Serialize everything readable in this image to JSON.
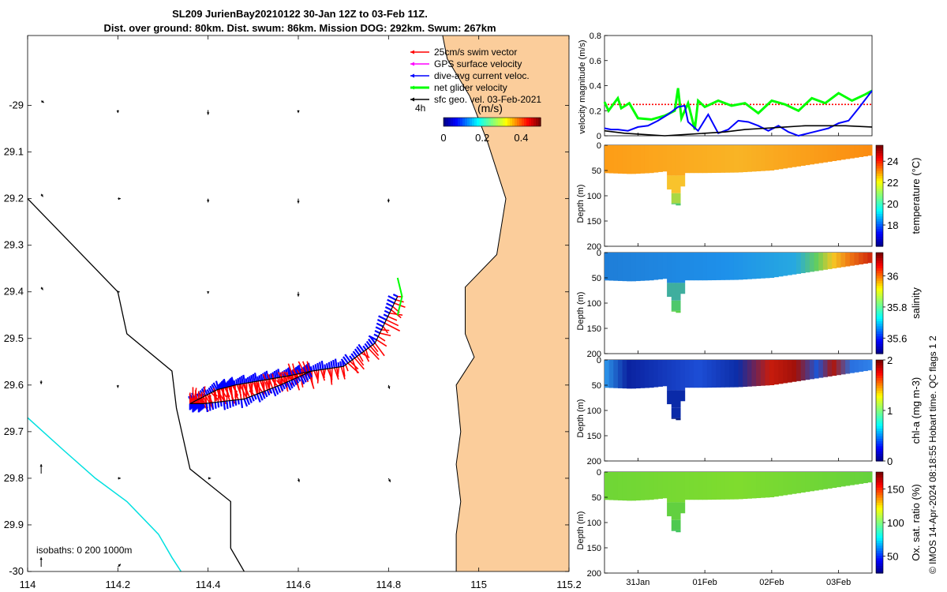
{
  "title": {
    "line1": "SL209 JurienBay20210122 30-Jan 12Z to 03-Feb 11Z.",
    "line2": "Dist. over ground: 80km. Dist. swum: 86km. Mission DOG: 292km. Swum: 267km"
  },
  "credit": "© IMOS 14-Apr-2024 08:18:55 Hobart time. QC flags 1  2",
  "colors": {
    "land": "#fbcd9b",
    "coast": "#000000",
    "isobath_200": "#000000",
    "isobath_1000": "#00e0e0",
    "swim": "#ff0000",
    "gps": "#ff00ff",
    "dive": "#0000ff",
    "net": "#00ff00",
    "sfc": "#000000"
  },
  "chart_data": [
    {
      "type": "map",
      "name": "glider-track-map",
      "xlim": [
        114,
        115.2
      ],
      "ylim": [
        -30,
        -28.85
      ],
      "xticks": [
        114,
        114.2,
        114.4,
        114.6,
        114.8,
        115,
        115.2
      ],
      "xtick_labels": [
        "114",
        "114.2",
        "114.4",
        "114.6",
        "114.8",
        "115",
        "115.2"
      ],
      "yticks": [
        -29,
        -29.1,
        -29.2,
        -29.3,
        -29.4,
        -29.5,
        -29.6,
        -29.7,
        -29.8,
        -29.9,
        -30
      ],
      "ytick_labels": [
        "-29",
        "29.1",
        "29.2",
        "29.3",
        "29.4",
        "29.5",
        "29.6",
        "29.7",
        "29.8",
        "29.9",
        "-30"
      ],
      "legend": [
        {
          "label": "25cm/s swim vector",
          "color": "#ff0000"
        },
        {
          "label": "GPS surface velocity",
          "color": "#ff00ff"
        },
        {
          "label": "dive-avg current veloc.",
          "color": "#0000ff"
        },
        {
          "label": "net glider velocity",
          "color": "#00ff00"
        },
        {
          "label": "sfc geo. vel. 03-Feb-2021",
          "color": "#000000"
        }
      ],
      "legend_note": "4h",
      "colorbar": {
        "label": "(m/s)",
        "ticks": [
          0,
          0.2,
          0.4
        ],
        "tick_labels": [
          "0",
          "0.2",
          "0.4"
        ],
        "range": [
          0,
          0.5
        ]
      },
      "isobath_label": "isobaths: 0   200  1000m",
      "coastline": [
        [
          115.2,
          -28.85
        ],
        [
          114.92,
          -28.85
        ],
        [
          114.93,
          -28.9
        ],
        [
          114.98,
          -28.98
        ],
        [
          115.02,
          -29.08
        ],
        [
          115.06,
          -29.2
        ],
        [
          115.04,
          -29.32
        ],
        [
          114.97,
          -29.39
        ],
        [
          114.97,
          -29.49
        ],
        [
          114.99,
          -29.54
        ],
        [
          114.95,
          -29.6
        ],
        [
          114.96,
          -29.7
        ],
        [
          114.95,
          -29.77
        ],
        [
          114.96,
          -29.85
        ],
        [
          114.95,
          -29.92
        ],
        [
          114.95,
          -30
        ],
        [
          115.2,
          -30
        ]
      ],
      "isobath_200": [
        [
          114,
          -29.2
        ],
        [
          114.1,
          -29.3
        ],
        [
          114.2,
          -29.4
        ],
        [
          114.22,
          -29.49
        ],
        [
          114.32,
          -29.57
        ],
        [
          114.33,
          -29.65
        ],
        [
          114.36,
          -29.78
        ],
        [
          114.45,
          -29.85
        ],
        [
          114.45,
          -29.95
        ],
        [
          114.48,
          -30
        ]
      ],
      "isobath_1000": [
        [
          114,
          -29.67
        ],
        [
          114.08,
          -29.74
        ],
        [
          114.15,
          -29.8
        ],
        [
          114.22,
          -29.85
        ],
        [
          114.29,
          -29.92
        ],
        [
          114.32,
          -29.97
        ],
        [
          114.34,
          -30
        ]
      ],
      "track": [
        [
          114.82,
          -29.41
        ],
        [
          114.77,
          -29.51
        ],
        [
          114.7,
          -29.56
        ],
        [
          114.63,
          -29.57
        ],
        [
          114.58,
          -29.58
        ],
        [
          114.52,
          -29.59
        ],
        [
          114.46,
          -29.6
        ],
        [
          114.42,
          -29.61
        ],
        [
          114.36,
          -29.64
        ],
        [
          114.39,
          -29.64
        ],
        [
          114.48,
          -29.63
        ],
        [
          114.56,
          -29.6
        ],
        [
          114.63,
          -29.57
        ]
      ],
      "current_arrows": [
        {
          "lon": 114.03,
          "lat": -28.99,
          "u": 0.03,
          "v": -0.02
        },
        {
          "lon": 114.2,
          "lat": -29.01,
          "u": 0,
          "v": -0.03
        },
        {
          "lon": 114.4,
          "lat": -29.01,
          "u": 0,
          "v": -0.05
        },
        {
          "lon": 114.6,
          "lat": -29.01,
          "u": 0,
          "v": -0.03
        },
        {
          "lon": 114.03,
          "lat": -29.19,
          "u": 0.02,
          "v": -0.03
        },
        {
          "lon": 114.2,
          "lat": -29.2,
          "u": 0.03,
          "v": 0
        },
        {
          "lon": 114.4,
          "lat": -29.2,
          "u": 0,
          "v": -0.04
        },
        {
          "lon": 114.6,
          "lat": -29.2,
          "u": 0,
          "v": -0.05
        },
        {
          "lon": 114.8,
          "lat": -29.2,
          "u": 0,
          "v": -0.04
        },
        {
          "lon": 114.03,
          "lat": -29.39,
          "u": 0.02,
          "v": -0.03
        },
        {
          "lon": 114.2,
          "lat": -29.4,
          "u": 0.02,
          "v": 0
        },
        {
          "lon": 114.4,
          "lat": -29.4,
          "u": 0,
          "v": -0.02
        },
        {
          "lon": 114.6,
          "lat": -29.4,
          "u": 0,
          "v": -0.05
        },
        {
          "lon": 114.03,
          "lat": -29.59,
          "u": 0,
          "v": -0.04
        },
        {
          "lon": 114.2,
          "lat": -29.6,
          "u": 0,
          "v": -0.03
        },
        {
          "lon": 114.8,
          "lat": -29.6,
          "u": 0.01,
          "v": -0.04
        },
        {
          "lon": 114.03,
          "lat": -29.79,
          "u": 0,
          "v": 0.1
        },
        {
          "lon": 114.2,
          "lat": -29.8,
          "u": 0.03,
          "v": 0
        },
        {
          "lon": 114.4,
          "lat": -29.8,
          "u": 0.03,
          "v": 0
        },
        {
          "lon": 114.6,
          "lat": -29.8,
          "u": 0.01,
          "v": -0.04
        },
        {
          "lon": 114.8,
          "lat": -29.8,
          "u": 0.02,
          "v": -0.04
        },
        {
          "lon": 114.03,
          "lat": -29.99,
          "u": 0,
          "v": 0.1
        },
        {
          "lon": 114.2,
          "lat": -29.99,
          "u": 0.03,
          "v": 0.03
        }
      ]
    },
    {
      "type": "line",
      "name": "velocity-magnitude-plot",
      "ylabel": "velocity magnitude (m/s)",
      "ylim": [
        0,
        0.8
      ],
      "yticks": [
        0,
        0.2,
        0.4,
        0.6,
        0.8
      ],
      "ytick_labels": [
        "0",
        "0.2",
        "0.4",
        "0.6",
        "0.8"
      ],
      "x_days": [
        30.5,
        34.5
      ],
      "series": [
        {
          "name": "swim speed",
          "color": "#ff0000",
          "x": [
            30.5,
            34.5
          ],
          "values": [
            0.25,
            0.25
          ]
        },
        {
          "name": "net glider velocity",
          "color": "#00ff00",
          "x": [
            30.5,
            30.56,
            30.7,
            30.75,
            30.87,
            31.0,
            31.2,
            31.4,
            31.55,
            31.6,
            31.65,
            31.75,
            31.85,
            31.9,
            32.0,
            32.2,
            32.4,
            32.6,
            32.8,
            33.0,
            33.2,
            33.4,
            33.6,
            33.8,
            34.0,
            34.2,
            34.4,
            34.5
          ],
          "values": [
            0.27,
            0.2,
            0.3,
            0.22,
            0.26,
            0.14,
            0.13,
            0.16,
            0.2,
            0.38,
            0.14,
            0.26,
            0.05,
            0.28,
            0.23,
            0.28,
            0.24,
            0.26,
            0.18,
            0.28,
            0.25,
            0.2,
            0.3,
            0.26,
            0.34,
            0.28,
            0.33,
            0.36
          ]
        },
        {
          "name": "dive-avg current veloc.",
          "color": "#0000ff",
          "x": [
            30.5,
            30.6,
            30.7,
            30.85,
            31.0,
            31.15,
            31.3,
            31.45,
            31.6,
            31.7,
            31.75,
            31.9,
            32.05,
            32.2,
            32.35,
            32.5,
            32.65,
            32.8,
            32.95,
            33.1,
            33.25,
            33.4,
            33.55,
            33.7,
            33.85,
            34.0,
            34.15,
            34.3,
            34.5
          ],
          "values": [
            0.06,
            0.05,
            0.05,
            0.04,
            0.07,
            0.08,
            0.12,
            0.17,
            0.23,
            0.24,
            0.11,
            0.04,
            0.17,
            0.02,
            0.05,
            0.12,
            0.11,
            0.08,
            0.04,
            0.08,
            0.03,
            0.0,
            0.02,
            0.04,
            0.06,
            0.1,
            0.12,
            0.22,
            0.36
          ]
        },
        {
          "name": "sfc geo. velocity",
          "color": "#000000",
          "x": [
            30.5,
            30.8,
            31.1,
            31.4,
            31.7,
            32.0,
            32.3,
            32.6,
            32.9,
            33.2,
            33.5,
            33.8,
            34.1,
            34.5
          ],
          "values": [
            0.04,
            0.02,
            0.01,
            0.0,
            0.01,
            0.02,
            0.03,
            0.05,
            0.06,
            0.07,
            0.08,
            0.08,
            0.08,
            0.07
          ]
        }
      ]
    },
    {
      "type": "heatmap",
      "name": "temperature-section",
      "ylabel": "Depth (m)",
      "ylim": [
        200,
        0
      ],
      "yticks": [
        0,
        50,
        100,
        150,
        200
      ],
      "ytick_labels": [
        "0",
        "50",
        "100",
        "150",
        "200"
      ],
      "colorbar_label": "temperature (°C)",
      "crange": [
        16,
        25.5
      ],
      "cticks": [
        18,
        20,
        22,
        24
      ],
      "ctick_labels": [
        "18",
        "20",
        "22",
        "24"
      ],
      "stops": [
        [
          0,
          "#fd9d17"
        ],
        [
          0.5,
          "#f9b425"
        ],
        [
          1,
          "#fb8c10"
        ]
      ],
      "canyon_colors": [
        "#f8c32c",
        "#a9d844",
        "#4ec86c"
      ]
    },
    {
      "type": "heatmap",
      "name": "salinity-section",
      "ylabel": "Depth (m)",
      "ylim": [
        200,
        0
      ],
      "yticks": [
        0,
        50,
        100,
        150,
        200
      ],
      "ytick_labels": [
        "0",
        "50",
        "100",
        "150",
        "200"
      ],
      "colorbar_label": "salinity",
      "crange": [
        35.5,
        36.15
      ],
      "cticks": [
        35.6,
        35.8,
        36
      ],
      "ctick_labels": [
        "35.6",
        "35.8",
        "36"
      ],
      "stops": [
        [
          0,
          "#1f7ed8"
        ],
        [
          0.45,
          "#1e90ea"
        ],
        [
          0.72,
          "#27a9e0"
        ],
        [
          0.8,
          "#66cf5a"
        ],
        [
          0.86,
          "#f5c824"
        ],
        [
          0.92,
          "#f07a14"
        ],
        [
          1,
          "#d02c0e"
        ]
      ],
      "canyon_colors": [
        "#3fae9e",
        "#4ec86c",
        "#5bd14a"
      ]
    },
    {
      "type": "heatmap",
      "name": "chla-section",
      "ylabel": "Depth (m)",
      "ylim": [
        200,
        0
      ],
      "yticks": [
        0,
        50,
        100,
        150,
        200
      ],
      "ytick_labels": [
        "0",
        "50",
        "100",
        "150",
        "200"
      ],
      "colorbar_label": "chl-a (mg m-3)",
      "crange": [
        0,
        2
      ],
      "cticks": [
        0,
        1,
        2
      ],
      "ctick_labels": [
        "0",
        "1",
        "2"
      ],
      "stops": [
        [
          0,
          "#2b8fe6"
        ],
        [
          0.08,
          "#0a22a0"
        ],
        [
          0.35,
          "#1d4ed6"
        ],
        [
          0.5,
          "#0c2ca6"
        ],
        [
          0.62,
          "#c81c0c"
        ],
        [
          0.72,
          "#a0100a"
        ],
        [
          0.8,
          "#1a56d8"
        ],
        [
          0.86,
          "#b01408"
        ],
        [
          0.93,
          "#2a70e0"
        ],
        [
          1,
          "#2f80e8"
        ]
      ],
      "canyon_colors": [
        "#0a2aa8",
        "#0a2aa8",
        "#061c80"
      ]
    },
    {
      "type": "heatmap",
      "name": "oxygen-section",
      "ylabel": "Depth (m)",
      "ylim": [
        200,
        0
      ],
      "yticks": [
        0,
        50,
        100,
        150,
        200
      ],
      "ytick_labels": [
        "0",
        "50",
        "100",
        "150",
        "200"
      ],
      "colorbar_label": "Ox. sat. ratio (%)",
      "crange": [
        25,
        175
      ],
      "cticks": [
        50,
        100,
        150
      ],
      "ctick_labels": [
        "50",
        "100",
        "150"
      ],
      "stops": [
        [
          0,
          "#6fd636"
        ],
        [
          0.5,
          "#7fdc2e"
        ],
        [
          1,
          "#66d23c"
        ]
      ],
      "canyon_colors": [
        "#62d040",
        "#4ec950",
        "#3fc45c"
      ]
    }
  ],
  "date_axis": {
    "ticks": [
      31,
      32,
      33,
      34
    ],
    "tick_labels": [
      "31Jan",
      "01Feb",
      "02Feb",
      "03Feb"
    ]
  }
}
